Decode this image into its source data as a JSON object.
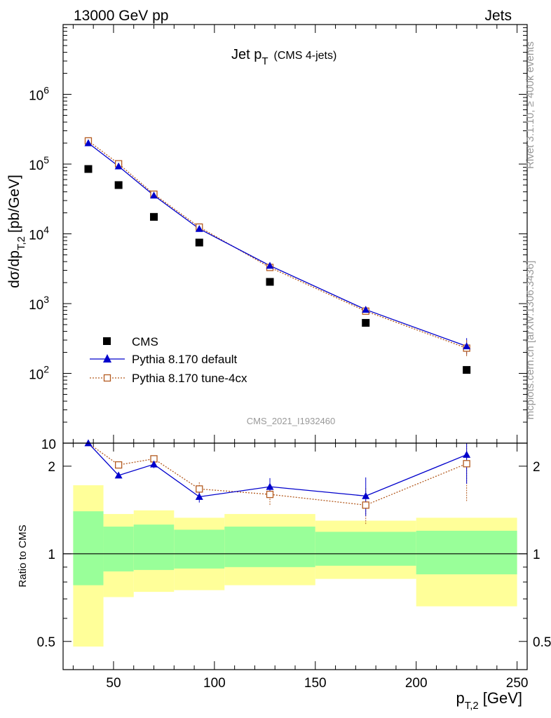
{
  "header": {
    "left": "13000 GeV pp",
    "right": "Jets"
  },
  "side": {
    "rivet": "Rivet 3.1.10, ≥ 400k events",
    "mcplots": "mcplots.cern.ch [arXiv:1306.3436]"
  },
  "chart_data": [
    {
      "type": "scatter",
      "title_main": "Jet p",
      "title_sub": "T",
      "title_note": "(CMS 4-jets)",
      "ylabel_main": "dσ/dp",
      "ylabel_sub": "T,2",
      "ylabel_unit": "[pb/GeV]",
      "yscale": "log",
      "ylim": [
        10,
        10000000
      ],
      "xlim": [
        25,
        255
      ],
      "y_ticks": [
        {
          "value": 10,
          "mantissa": "10",
          "exp": ""
        },
        {
          "value": 100,
          "mantissa": "10",
          "exp": "2"
        },
        {
          "value": 1000,
          "mantissa": "10",
          "exp": "3"
        },
        {
          "value": 10000,
          "mantissa": "10",
          "exp": "4"
        },
        {
          "value": 100000,
          "mantissa": "10",
          "exp": "5"
        },
        {
          "value": 1000000,
          "mantissa": "10",
          "exp": "6"
        }
      ],
      "analysis_tag": "CMS_2021_I1932460",
      "legend_position": "bottom-left",
      "series": [
        {
          "name": "CMS",
          "color": "#000000",
          "marker": "square-filled",
          "x": [
            37.5,
            52.5,
            70,
            92.5,
            127.5,
            175,
            225
          ],
          "y": [
            85000,
            50000,
            17500,
            7500,
            2050,
            530,
            112
          ]
        },
        {
          "name": "Pythia 8.170 default",
          "color": "#0000cc",
          "marker": "triangle",
          "line": "solid",
          "x": [
            37.5,
            52.5,
            70,
            92.5,
            127.5,
            175,
            225
          ],
          "y": [
            200000,
            93000,
            35500,
            11800,
            3500,
            820,
            245
          ],
          "yerr": [
            0,
            0,
            0,
            0,
            0,
            0,
            0
          ]
        },
        {
          "name": "Pythia 8.170 tune-4cx",
          "color": "#b35a1f",
          "marker": "square-open",
          "line": "dotted",
          "x": [
            37.5,
            52.5,
            70,
            92.5,
            127.5,
            175,
            225
          ],
          "y": [
            215000,
            101000,
            37000,
            12500,
            3300,
            780,
            230
          ]
        }
      ]
    },
    {
      "type": "scatter",
      "ylabel": "Ratio to CMS",
      "xlabel_main": "p",
      "xlabel_sub": "T,2",
      "xlabel_unit": "[GeV]",
      "yscale": "log",
      "ylim": [
        0.4,
        2.4
      ],
      "xlim": [
        25,
        255
      ],
      "x_ticks": [
        50,
        100,
        150,
        200,
        250
      ],
      "y_ticks": [
        0.5,
        1,
        2
      ],
      "reference_line": 1,
      "bands": {
        "bins": [
          [
            30,
            45
          ],
          [
            45,
            60
          ],
          [
            60,
            80
          ],
          [
            80,
            105
          ],
          [
            105,
            150
          ],
          [
            150,
            200
          ],
          [
            200,
            250
          ]
        ],
        "yellow": [
          [
            0.48,
            1.72
          ],
          [
            0.71,
            1.37
          ],
          [
            0.74,
            1.41
          ],
          [
            0.75,
            1.33
          ],
          [
            0.78,
            1.37
          ],
          [
            0.82,
            1.3
          ],
          [
            0.66,
            1.33
          ]
        ],
        "green": [
          [
            0.78,
            1.4
          ],
          [
            0.87,
            1.24
          ],
          [
            0.88,
            1.26
          ],
          [
            0.89,
            1.21
          ],
          [
            0.9,
            1.24
          ],
          [
            0.91,
            1.19
          ],
          [
            0.85,
            1.2
          ]
        ]
      },
      "series": [
        {
          "name": "Pythia 8.170 default",
          "color": "#0000cc",
          "marker": "triangle",
          "line": "solid",
          "x": [
            37.5,
            52.5,
            70,
            92.5,
            127.5,
            175,
            225
          ],
          "y": [
            2.4,
            1.86,
            2.03,
            1.57,
            1.7,
            1.58,
            2.19
          ],
          "yerr_lo": [
            0,
            0,
            0.06,
            0.07,
            0.12,
            0.23,
            0.45
          ],
          "yerr_hi": [
            0,
            0,
            0.06,
            0.07,
            0.12,
            0.25,
            0.45
          ]
        },
        {
          "name": "Pythia 8.170 tune-4cx",
          "color": "#b35a1f",
          "marker": "square-open",
          "line": "dotted",
          "x": [
            37.5,
            52.5,
            70,
            92.5,
            127.5,
            175,
            225
          ],
          "y": [
            2.53,
            2.02,
            2.12,
            1.67,
            1.6,
            1.47,
            2.04
          ],
          "yerr_lo": [
            0,
            0,
            0.05,
            0.09,
            0.14,
            0.21,
            0.53
          ],
          "yerr_hi": [
            0,
            0,
            0.05,
            0.09,
            0.14,
            0.21,
            0.53
          ]
        }
      ]
    }
  ]
}
